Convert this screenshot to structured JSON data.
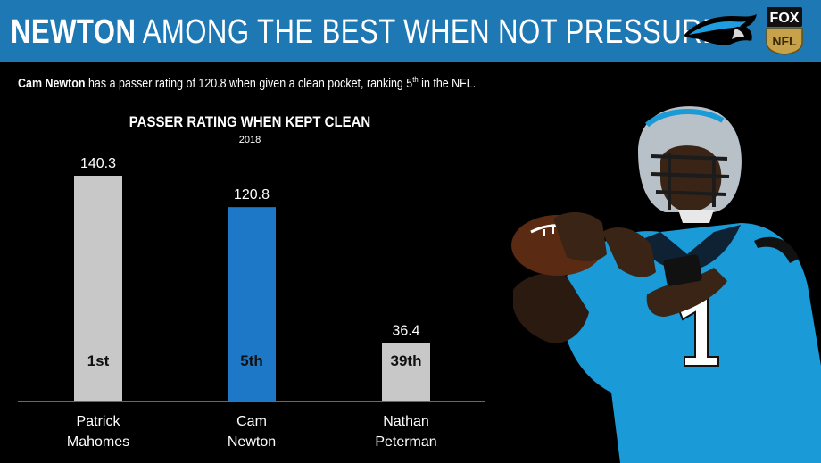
{
  "header": {
    "title_bold": "NEWTON",
    "title_rest": "AMONG THE BEST WHEN NOT PRESSURED",
    "team_logo_icon": "panthers-logo",
    "network_logo_text_top": "FOX",
    "network_logo_text_bottom": "NFL"
  },
  "subtitle": {
    "name": "Cam Newton",
    "text_before_rank": " has a passer rating of 120.8 when given a clean pocket, ranking 5",
    "rank_suffix": "th",
    "text_after_rank": " in the NFL."
  },
  "colors": {
    "header_bg": "#1e78b4",
    "highlight_bar": "#1e78c8",
    "other_bar": "#c8c8c8",
    "jersey_blue": "#1a9ad6"
  },
  "chart_data": {
    "type": "bar",
    "title": "PASSER RATING WHEN KEPT CLEAN",
    "subtitle": "2018",
    "categories": [
      [
        "Patrick",
        "Mahomes"
      ],
      [
        "Cam",
        "Newton"
      ],
      [
        "Nathan",
        "Peterman"
      ]
    ],
    "values": [
      140.3,
      120.8,
      36.4
    ],
    "value_labels": [
      "140.3",
      "120.8",
      "36.4"
    ],
    "ranks": [
      "1st",
      "5th",
      "39th"
    ],
    "highlight_index": 1,
    "ylim": [
      0,
      140.3
    ]
  },
  "image": {
    "player_icon": "quarterback-photo",
    "jersey_number": "1"
  }
}
